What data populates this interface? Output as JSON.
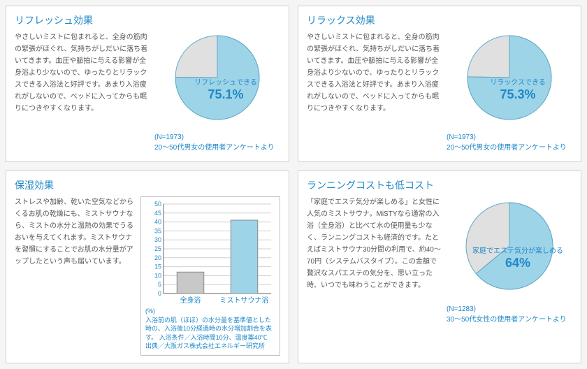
{
  "refresh": {
    "title": "リフレッシュ効果",
    "desc": "やさしいミストに包まれると、全身の筋肉の緊張がほぐれ、気持ちがしだいに落ち着いてきます。血圧や脈拍に与える影響が全身浴より少ないので、ゆったりとリラックスできる入浴法と好評です。あまり入浴疲れがしないので、ベッドに入ってからも眠りにつきやすくなります。",
    "pie": {
      "label": "リフレッシュできる",
      "value": 75.1,
      "value_display": "75.1%",
      "fill_color": "#9ed4e8",
      "remainder_color": "#e0e0e0",
      "stroke_color": "#5fa8c8",
      "r": 60
    },
    "caption_line1": "(N=1973)",
    "caption_line2": "20〜50代男女の使用者アンケートより"
  },
  "relax": {
    "title": "リラックス効果",
    "desc": "やさしいミストに包まれると、全身の筋肉の緊張がほぐれ、気持ちがしだいに落ち着いてきます。血圧や脈拍に与える影響が全身浴より少ないので、ゆったりとリラックスできる入浴法と好評です。あまり入浴疲れがしないので、ベッドに入ってからも眠りにつきやすくなります。",
    "pie": {
      "label": "リラックスできる",
      "value": 75.3,
      "value_display": "75.3%",
      "fill_color": "#9ed4e8",
      "remainder_color": "#e0e0e0",
      "stroke_color": "#5fa8c8",
      "r": 60
    },
    "caption_line1": "(N=1973)",
    "caption_line2": "20〜50代男女の使用者アンケートより"
  },
  "moisturize": {
    "title": "保湿効果",
    "desc": "ストレスや加齢、乾いた空気などからくるお肌の乾燥にも、ミストサウナなら、ミストの水分と温熱の効果でうるおいを与えてくれます。ミストサウナを習慣にすることでお肌の水分量がアップしたという声も届いています。",
    "bar": {
      "ymax": 50,
      "ymin": 0,
      "ystep": 5,
      "grid_color": "#d0d0d0",
      "axis_color": "#666",
      "categories": [
        {
          "label": "全身浴",
          "value": 12,
          "color": "#c8c8c8",
          "label_color": "#1e88c7"
        },
        {
          "label": "ミストサウナ浴",
          "value": 41,
          "color": "#9ed4e8",
          "label_color": "#1e88c7"
        }
      ],
      "ylabel": "(%)"
    },
    "footer": "入浴前の肌（ほほ）の水分量を基準値とした時の、入浴後10分経過時の水分増加割合を表す。\n入浴条件／入浴時間10分、温度薬40℃\n出典／大阪ガス株式会社エネルギー研究所"
  },
  "cost": {
    "title": "ランニングコストも低コスト",
    "desc": "「家庭でエステ気分が楽しめる」と女性に人気のミストサウナ。MiSTYなら通常の入浴（全身浴）と比べて水の使用量も少なく、ランニングコストも経済的です。たとえばミストサウナ30分間の利用で、約40〜70円（システムバスタイプ）。この金額で贅沢なスパエステの気分を、思い立った時、いつでも味わうことができます。",
    "pie": {
      "label": "家庭でエステ気分が楽しめる",
      "value": 64,
      "value_display": "64%",
      "fill_color": "#9ed4e8",
      "remainder_color": "#e0e0e0",
      "stroke_color": "#5fa8c8",
      "r": 62
    },
    "caption_line1": "(N=1283)",
    "caption_line2": "30〜50代女性の使用者アンケートより"
  }
}
